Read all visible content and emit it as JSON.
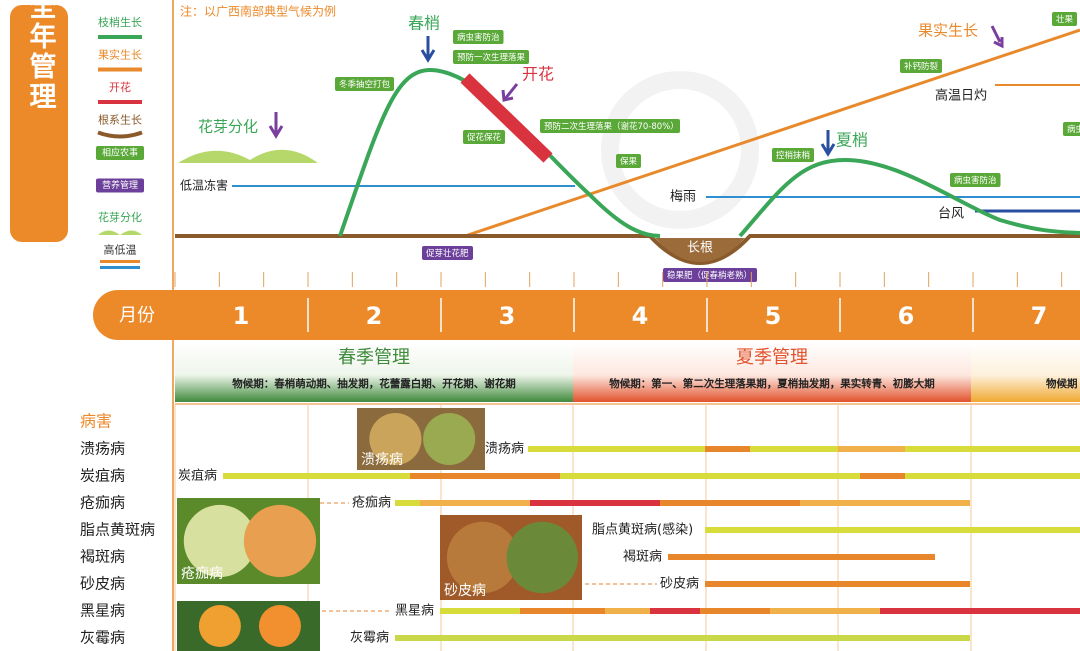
{
  "title": "柑橘全年管理",
  "note": "注：以广西南部典型气候为例",
  "legend": [
    "枝梢生长",
    "果实生长",
    "开花",
    "根系生长",
    "相应农事",
    "营养管理",
    "花芽分化",
    "高低温"
  ],
  "chart_labels": {
    "spring_shoot": "春梢",
    "flowering": "开花",
    "bud": "花芽分化",
    "summer_shoot": "夏梢",
    "fruit_growth": "果实生长",
    "heat": "高温日灼",
    "plum_rain": "梅雨",
    "typhoon": "台风",
    "frost": "低温冻害",
    "root": "长根"
  },
  "farm_tasks": [
    "冬季抽空打包",
    "病虫害防治",
    "预防一次生理落果",
    "促花保花",
    "预防二次生理落果（谢花70-80%）",
    "保果",
    "补钙防裂",
    "控梢抹梢",
    "病虫害防治",
    "壮果",
    "病虫"
  ],
  "nutrition_tasks": [
    "促芽壮花肥",
    "稳果肥（促春梢老熟）"
  ],
  "month_header": "月份",
  "months": [
    "1",
    "2",
    "3",
    "4",
    "5",
    "6",
    "7"
  ],
  "seasons": [
    {
      "name": "春季管理",
      "phenology": "物候期：春梢萌动期、抽发期，花蕾露白期、开花期、谢花期"
    },
    {
      "name": "夏季管理",
      "phenology": "物候期：第一、第二次生理落果期，夏梢抽发期，果实转青、初膨大期"
    }
  ],
  "next_season_phenology": "物候期",
  "diseases": {
    "header": "病害",
    "rows": [
      "溃疡病",
      "炭疽病",
      "疮痂病",
      "脂点黄斑病",
      "褐斑病",
      "砂皮病",
      "黑星病",
      "灰霉病"
    ],
    "bar_labels": [
      "溃疡病",
      "炭疽病",
      "疮痂病",
      "脂点黄斑病(感染)",
      "褐斑病",
      "砂皮病",
      "黑星病",
      "灰霉病"
    ],
    "photo_labels": [
      "溃疡病",
      "疮痂病",
      "砂皮病"
    ]
  }
}
